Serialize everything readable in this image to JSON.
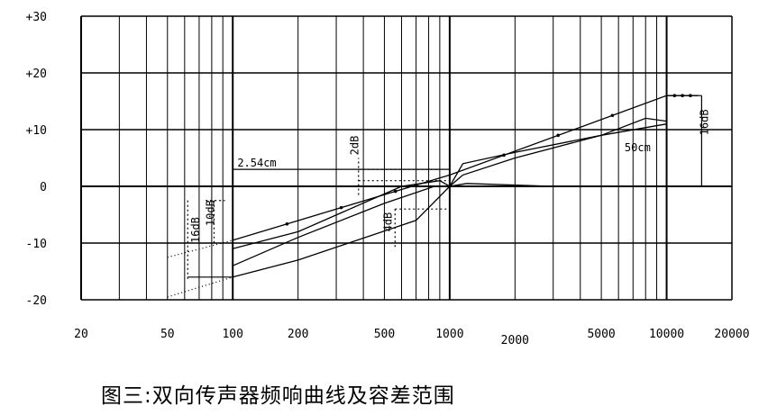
{
  "caption": "图三:双向传声器频响曲线及容差范围",
  "chart_data": {
    "type": "line",
    "x_scale": "log",
    "xlim": [
      20,
      20000
    ],
    "ylim": [
      -20,
      30
    ],
    "x_ticks": [
      {
        "value": 20,
        "label": "20"
      },
      {
        "value": 50,
        "label": "50"
      },
      {
        "value": 100,
        "label": "100"
      },
      {
        "value": 200,
        "label": "200"
      },
      {
        "value": 500,
        "label": "500"
      },
      {
        "value": 1000,
        "label": "1000"
      },
      {
        "value": 2000,
        "label": "2000"
      },
      {
        "value": 5000,
        "label": "5000"
      },
      {
        "value": 10000,
        "label": "10000"
      },
      {
        "value": 20000,
        "label": "20000"
      }
    ],
    "y_ticks": [
      {
        "value": 30,
        "label": "+30"
      },
      {
        "value": 20,
        "label": "+20"
      },
      {
        "value": 10,
        "label": "+10"
      },
      {
        "value": 0,
        "label": "0"
      },
      {
        "value": -10,
        "label": "-10"
      },
      {
        "value": -20,
        "label": "-20"
      }
    ],
    "series": [
      {
        "key": "upper_limit",
        "style": "solid-dots",
        "points": [
          [
            100,
            -9.5
          ],
          [
            1000,
            2
          ],
          [
            10000,
            16
          ],
          [
            14000,
            16
          ]
        ]
      },
      {
        "key": "upper_limit_ext",
        "style": "dotted",
        "points": [
          [
            50,
            -12.5
          ],
          [
            100,
            -9.5
          ]
        ]
      },
      {
        "key": "lower_limit",
        "style": "solid",
        "points": [
          [
            100,
            -16
          ],
          [
            200,
            -13
          ],
          [
            700,
            -6
          ],
          [
            1000,
            0
          ],
          [
            1200,
            0.5
          ],
          [
            3000,
            0
          ]
        ]
      },
      {
        "key": "lower_limit_ext",
        "style": "dotted",
        "points": [
          [
            50,
            -19.5
          ],
          [
            100,
            -16
          ]
        ]
      },
      {
        "key": "curve_2_54cm",
        "style": "solid",
        "points": [
          [
            100,
            -14
          ],
          [
            200,
            -9
          ],
          [
            500,
            -3
          ],
          [
            850,
            0
          ],
          [
            1000,
            0
          ],
          [
            1150,
            2
          ],
          [
            2000,
            5
          ],
          [
            5000,
            9
          ],
          [
            8000,
            12
          ],
          [
            10000,
            11.5
          ]
        ]
      },
      {
        "key": "curve_50cm",
        "style": "solid",
        "points": [
          [
            100,
            -11
          ],
          [
            200,
            -8
          ],
          [
            600,
            0
          ],
          [
            900,
            1
          ],
          [
            1000,
            0
          ],
          [
            1150,
            4
          ],
          [
            2000,
            6
          ],
          [
            5000,
            9
          ],
          [
            10000,
            11
          ]
        ]
      }
    ],
    "annotations": [
      {
        "label": "2.54cm",
        "x": 105,
        "y": 3.5
      },
      {
        "label": "50cm",
        "x": 6400,
        "y": 6.2
      },
      {
        "label": "2dB",
        "x": 380,
        "y": 5.5,
        "rotated": true
      },
      {
        "label": "4dB",
        "x": 540,
        "y": -8,
        "rotated": true
      },
      {
        "label": "10dB",
        "x": 82,
        "y": -7,
        "rotated": true
      },
      {
        "label": "16dB",
        "x": 70,
        "y": -10,
        "rotated": true
      },
      {
        "label": "16dB",
        "x": 15500,
        "y": 9,
        "rotated": true
      }
    ]
  }
}
